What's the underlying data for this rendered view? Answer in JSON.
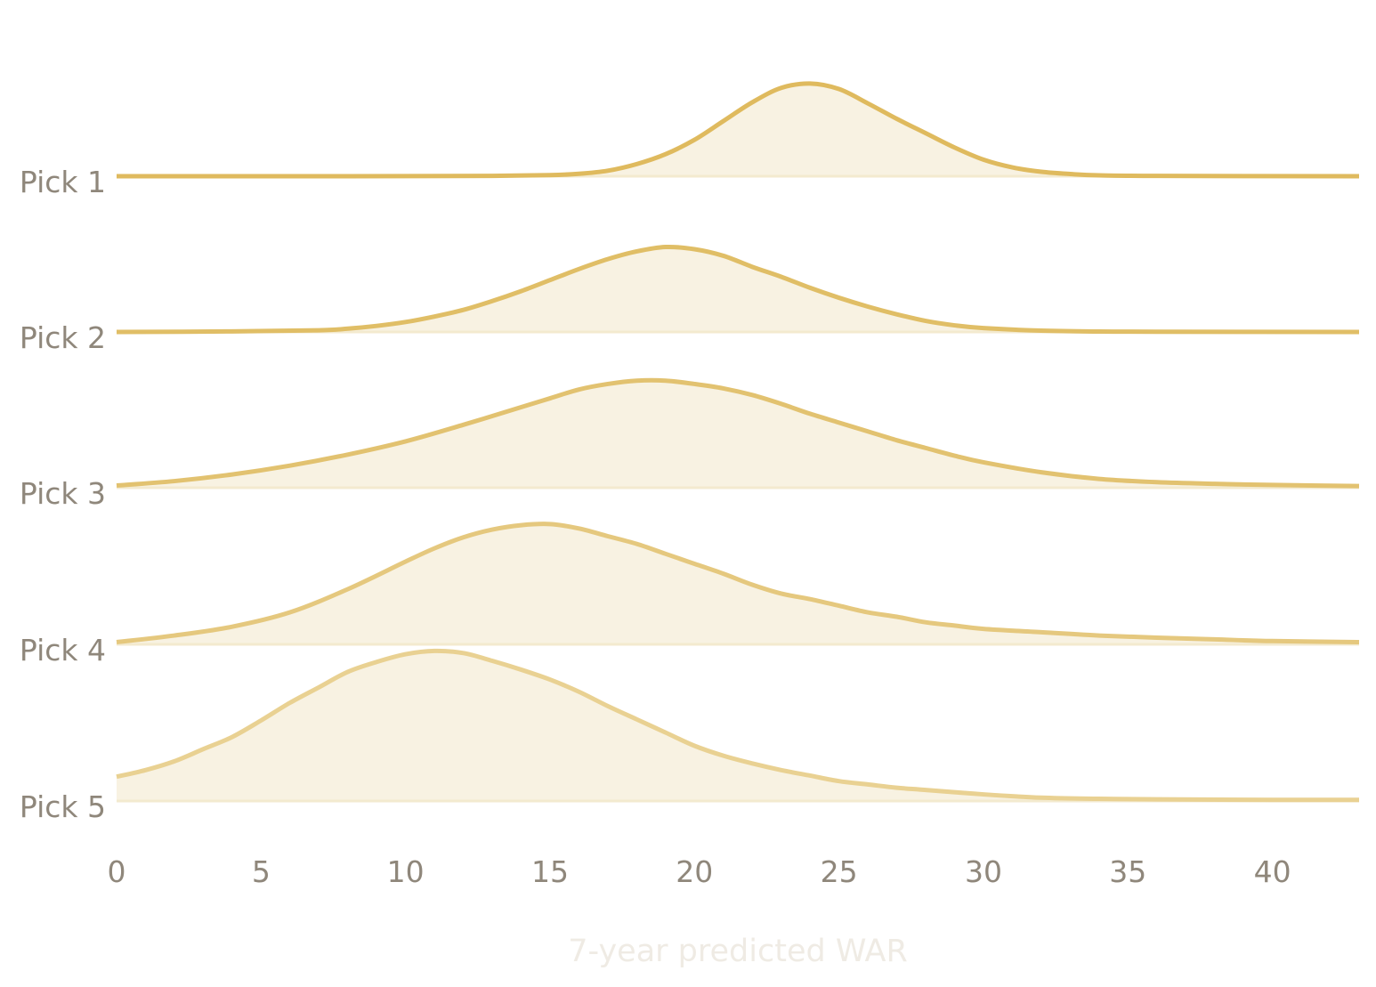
{
  "chart_data": {
    "type": "ridgeline",
    "xlabel": "7-year predicted WAR",
    "xlim": [
      0,
      43
    ],
    "x_ticks": [
      0,
      5,
      10,
      15,
      20,
      25,
      30,
      35,
      40
    ],
    "x_tick_labels": [
      "0",
      "5",
      "10",
      "15",
      "20",
      "25",
      "30",
      "35",
      "40"
    ],
    "grid": false,
    "legend": "none",
    "colors": {
      "fill": "#f8f2e2",
      "baseline": "#f3eacf",
      "label": "#8f877b",
      "axis_title": "#efebe4",
      "lines": [
        "#dfba5e",
        "#e0be66",
        "#e2c270",
        "#e5c87e",
        "#e9d192"
      ]
    },
    "series": [
      {
        "name": "Pick 1",
        "x": [
          0,
          3,
          6,
          10,
          13,
          15,
          16,
          17,
          18,
          19,
          20,
          21,
          22,
          23,
          24,
          25,
          26,
          27,
          28,
          29,
          30,
          31,
          32,
          33,
          34,
          36,
          43
        ],
        "values": [
          0,
          0,
          0,
          0.1,
          0.3,
          1,
          2.2,
          5,
          11,
          20,
          33,
          50,
          67,
          80,
          84,
          79,
          66,
          52,
          39,
          26,
          15,
          8,
          4,
          2,
          0.8,
          0.3,
          0
        ]
      },
      {
        "name": "Pick 2",
        "x": [
          0,
          4,
          7,
          8,
          9,
          10,
          11,
          12,
          13,
          14,
          15,
          16,
          17,
          18,
          19,
          20,
          21,
          22,
          23,
          24,
          25,
          26,
          27,
          28,
          29,
          30,
          32,
          34,
          36,
          43
        ],
        "values": [
          0,
          0.5,
          1.5,
          3,
          5.5,
          9,
          14,
          20,
          28,
          37,
          47,
          57,
          66,
          73,
          77,
          75,
          69,
          59,
          50,
          40,
          31,
          23,
          16,
          10,
          6,
          3.5,
          1.2,
          0.4,
          0.2,
          0
        ]
      },
      {
        "name": "Pick 3",
        "x": [
          0,
          2,
          4,
          6,
          8,
          10,
          12,
          14,
          15,
          16,
          17,
          18,
          19,
          20,
          21,
          22,
          23,
          24,
          25,
          26,
          27,
          28,
          29,
          30,
          32,
          34,
          36,
          38,
          40,
          43
        ],
        "values": [
          2,
          6,
          12,
          20,
          30,
          42,
          57,
          73,
          81,
          89,
          94,
          97,
          97,
          94,
          90,
          84,
          76,
          67,
          59,
          51,
          43,
          36,
          29,
          23,
          14,
          8,
          5,
          3.5,
          2.5,
          1.5
        ]
      },
      {
        "name": "Pick 4",
        "x": [
          0,
          2,
          4,
          6,
          8,
          10,
          11,
          12,
          13,
          14,
          15,
          16,
          17,
          18,
          19,
          20,
          21,
          22,
          23,
          24,
          25,
          26,
          27,
          28,
          29,
          30,
          32,
          34,
          36,
          38,
          40,
          43
        ],
        "values": [
          2,
          8,
          16,
          29,
          50,
          75,
          87,
          97,
          104,
          108,
          109,
          105,
          98,
          91,
          82,
          73,
          64,
          54,
          46,
          41,
          35,
          29,
          25,
          20,
          17,
          14,
          11,
          8,
          6,
          4.5,
          3,
          2
        ]
      },
      {
        "name": "Pick 5",
        "x": [
          0,
          1,
          2,
          3,
          4,
          5,
          6,
          7,
          8,
          9,
          10,
          11,
          12,
          13,
          14,
          15,
          16,
          17,
          18,
          19,
          20,
          21,
          22,
          23,
          24,
          25,
          26,
          27,
          28,
          30,
          32,
          34,
          36,
          40,
          43
        ],
        "values": [
          22,
          28,
          36,
          47,
          58,
          73,
          89,
          103,
          117,
          126,
          133,
          136,
          134,
          127,
          119,
          110,
          99,
          86,
          74,
          62,
          50,
          41,
          34,
          28,
          23,
          18,
          15,
          12,
          10,
          6,
          3,
          2,
          1.5,
          1,
          1
        ]
      }
    ]
  }
}
